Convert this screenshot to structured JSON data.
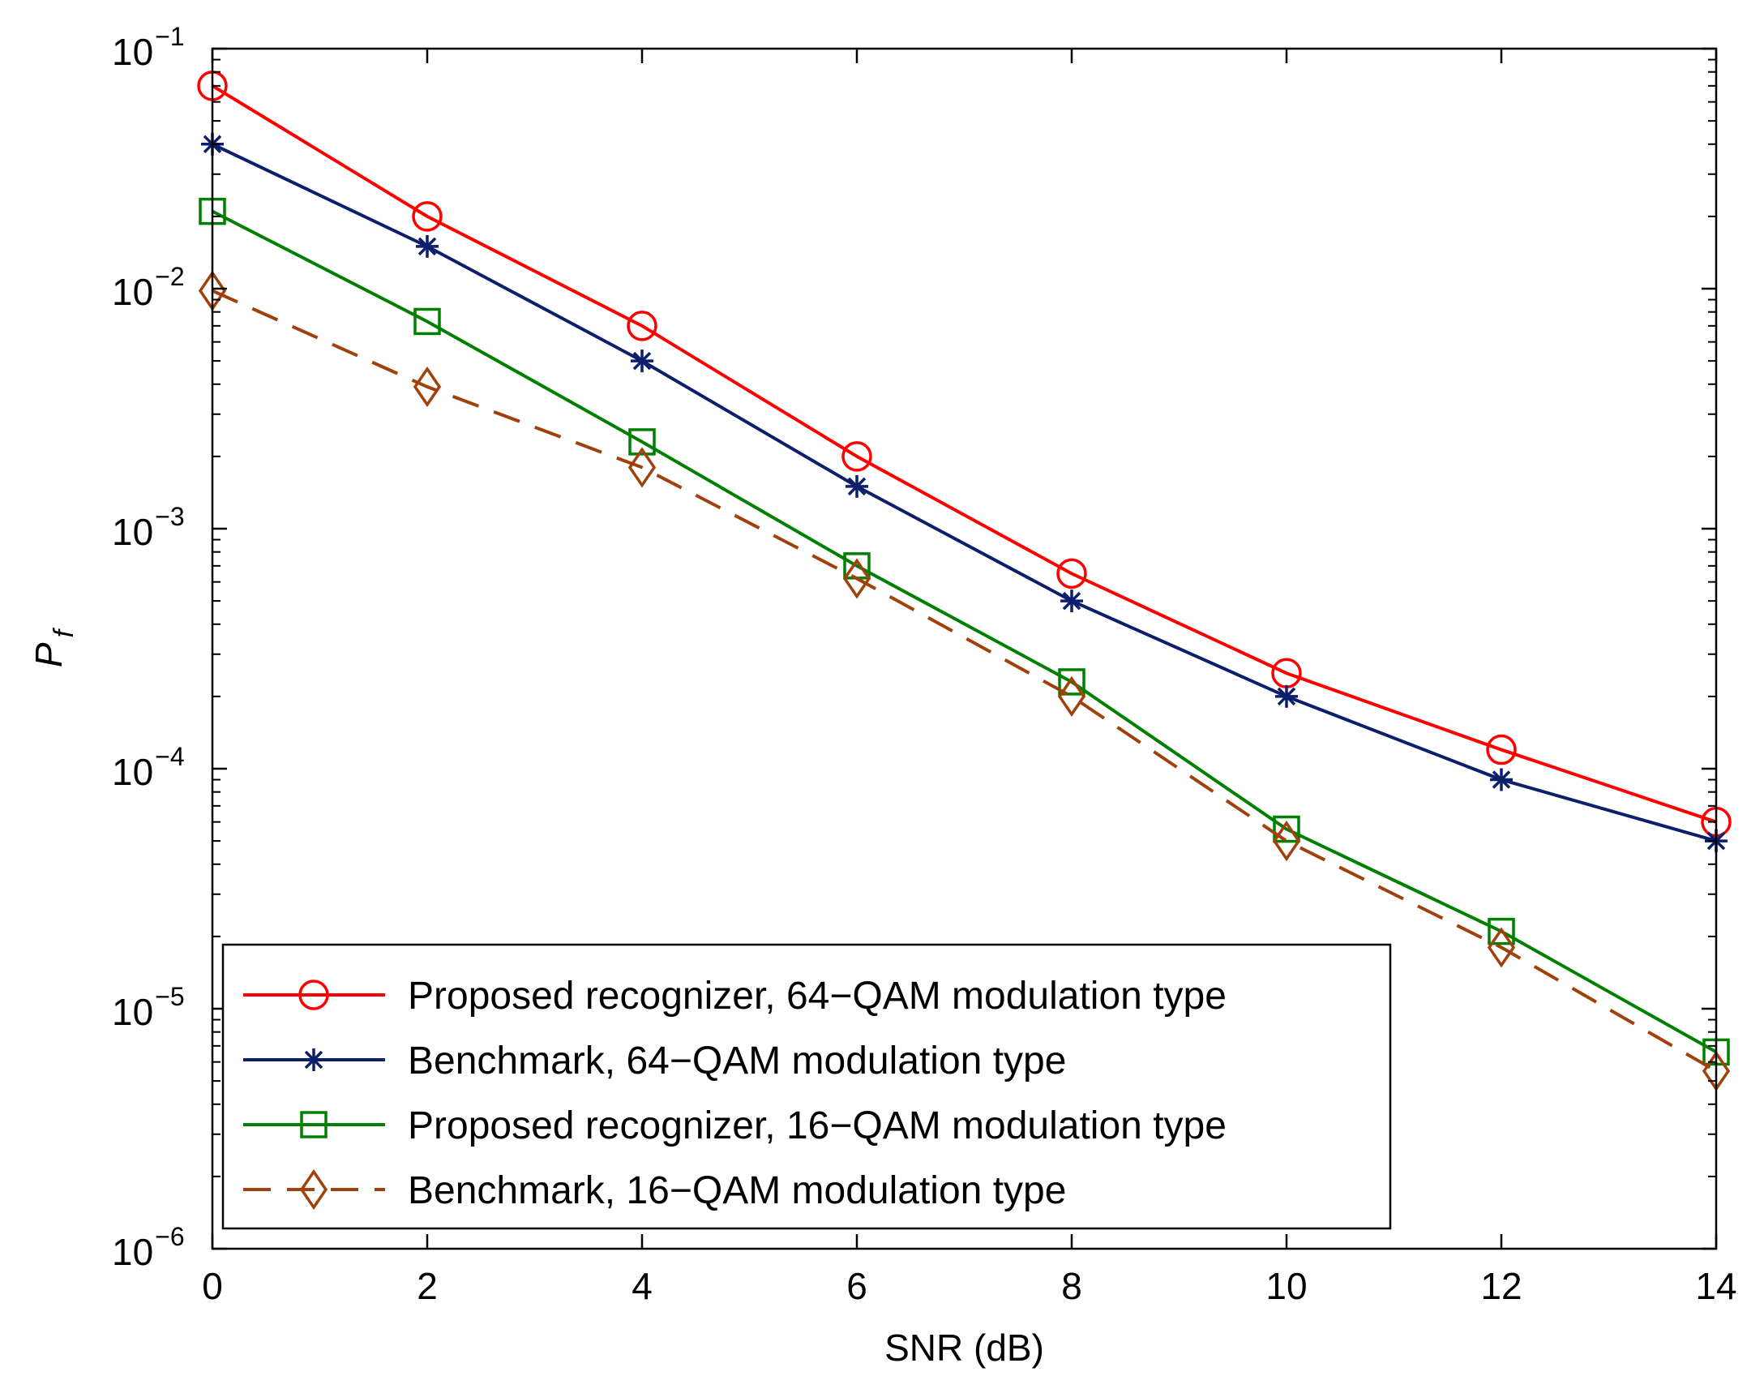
{
  "chart_data": {
    "type": "line",
    "title": "",
    "xlabel": "SNR (dB)",
    "ylabel": {
      "main": "P",
      "sub": "f"
    },
    "xlim": [
      0,
      14
    ],
    "ylim": [
      1e-06,
      0.1
    ],
    "yscale": "log",
    "grid": false,
    "legend_position": "bottom-left",
    "x_ticks": [
      {
        "value": 0,
        "label": "0"
      },
      {
        "value": 2,
        "label": "2"
      },
      {
        "value": 4,
        "label": "4"
      },
      {
        "value": 6,
        "label": "6"
      },
      {
        "value": 8,
        "label": "8"
      },
      {
        "value": 10,
        "label": "10"
      },
      {
        "value": 12,
        "label": "12"
      },
      {
        "value": 14,
        "label": "14"
      }
    ],
    "y_ticks": [
      {
        "value": 0.1,
        "base": "10",
        "exp": "−1"
      },
      {
        "value": 0.01,
        "base": "10",
        "exp": "−2"
      },
      {
        "value": 0.001,
        "base": "10",
        "exp": "−3"
      },
      {
        "value": 0.0001,
        "base": "10",
        "exp": "−4"
      },
      {
        "value": 1e-05,
        "base": "10",
        "exp": "−5"
      },
      {
        "value": 1e-06,
        "base": "10",
        "exp": "−6"
      }
    ],
    "x": [
      0,
      2,
      4,
      6,
      8,
      10,
      12,
      14
    ],
    "series": [
      {
        "name": "Proposed recognizer, 64−QAM modulation type",
        "color": "#ff0000",
        "marker": "circle",
        "dash": "solid",
        "values": [
          0.07,
          0.02,
          0.007,
          0.002,
          0.00065,
          0.00025,
          0.00012,
          6e-05
        ]
      },
      {
        "name": "Benchmark, 64−QAM modulation type",
        "color": "#0b1f6b",
        "marker": "asterisk",
        "dash": "solid",
        "values": [
          0.04,
          0.015,
          0.005,
          0.0015,
          0.0005,
          0.0002,
          9e-05,
          5e-05
        ]
      },
      {
        "name": "Proposed recognizer, 16−QAM modulation type",
        "color": "#008000",
        "marker": "square",
        "dash": "solid",
        "values": [
          0.021,
          0.0073,
          0.0023,
          0.0007,
          0.00023,
          5.6e-05,
          2.1e-05,
          6.6e-06
        ]
      },
      {
        "name": "Benchmark, 16−QAM modulation type",
        "color": "#a0400a",
        "marker": "diamond",
        "dash": "dashed",
        "values": [
          0.0098,
          0.0039,
          0.0018,
          0.00062,
          0.0002,
          5e-05,
          1.8e-05,
          5.5e-06
        ]
      }
    ]
  }
}
